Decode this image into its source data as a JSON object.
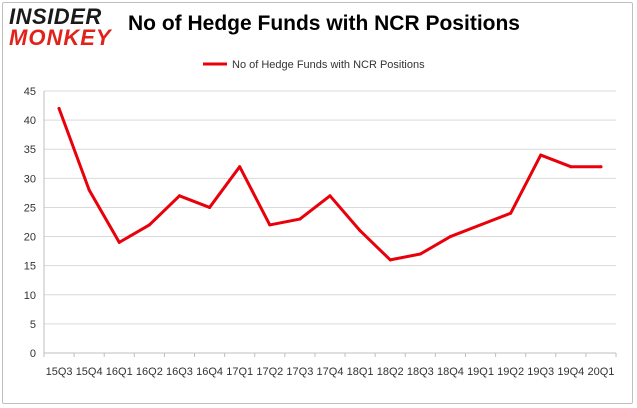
{
  "logo": {
    "line1": "INSIDER",
    "line2": "MONKEY"
  },
  "colors": {
    "series": "#e8000b",
    "grid": "#d9d9d9",
    "axis": "#bfbfbf",
    "text": "#333333"
  },
  "chart_data": {
    "type": "line",
    "title": "No of Hedge Funds with NCR Positions",
    "xlabel": "",
    "ylabel": "",
    "ylim": [
      0,
      45
    ],
    "yticks": [
      0,
      5,
      10,
      15,
      20,
      25,
      30,
      35,
      40,
      45
    ],
    "grid": "horizontal",
    "legend_position": "top",
    "categories": [
      "15Q3",
      "15Q4",
      "16Q1",
      "16Q2",
      "16Q3",
      "16Q4",
      "17Q1",
      "17Q2",
      "17Q3",
      "17Q4",
      "18Q1",
      "18Q2",
      "18Q3",
      "18Q4",
      "19Q1",
      "19Q2",
      "19Q3",
      "19Q4",
      "20Q1"
    ],
    "series": [
      {
        "name": "No of Hedge Funds with NCR Positions",
        "values": [
          42,
          28,
          19,
          22,
          27,
          25,
          32,
          22,
          23,
          27,
          21,
          16,
          17,
          20,
          22,
          24,
          34,
          32,
          32
        ]
      }
    ]
  }
}
